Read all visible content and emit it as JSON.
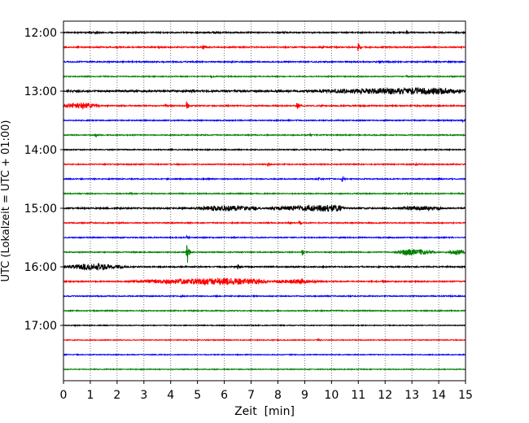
{
  "chart_data": {
    "type": "line",
    "title": "",
    "xlabel": "Zeit  [min]",
    "ylabel": "UTC (Lokalzeit = UTC + 01:00)",
    "x_range": [
      0,
      15
    ],
    "x_ticks": [
      "0",
      "1",
      "2",
      "3",
      "4",
      "5",
      "6",
      "7",
      "8",
      "9",
      "10",
      "11",
      "12",
      "13",
      "14",
      "15"
    ],
    "y_ticks": [
      "12:00",
      "13:00",
      "14:00",
      "15:00",
      "16:00",
      "17:00"
    ],
    "grid": "vertical dotted",
    "trace_interval_minutes": 15,
    "color_cycle": [
      "#000000",
      "#ff0000",
      "#0000ff",
      "#008000"
    ],
    "traces": [
      {
        "start": "12:00",
        "color": "#000000",
        "noise": 0.12,
        "events": [
          {
            "t": 1.1,
            "amp": 0.25
          },
          {
            "t": 5.6,
            "amp": 0.35
          },
          {
            "t": 8.2,
            "amp": 0.2
          },
          {
            "t": 12.8,
            "amp": 0.35
          }
        ]
      },
      {
        "start": "12:15",
        "color": "#ff0000",
        "noise": 0.12,
        "events": [
          {
            "t": 5.2,
            "amp": 0.9
          },
          {
            "t": 11.0,
            "amp": 1.0
          },
          {
            "t": 2.0,
            "amp": 0.2
          },
          {
            "t": 9.6,
            "amp": 0.2
          }
        ]
      },
      {
        "start": "12:30",
        "color": "#0000ff",
        "noise": 0.12,
        "events": [
          {
            "t": 6.3,
            "amp": 0.3
          },
          {
            "t": 11.8,
            "amp": 0.35
          },
          {
            "t": 1.0,
            "amp": 0.15
          }
        ]
      },
      {
        "start": "12:45",
        "color": "#008000",
        "noise": 0.1,
        "events": [
          {
            "t": 5.5,
            "amp": 0.2
          },
          {
            "t": 12.8,
            "amp": 0.2
          }
        ]
      },
      {
        "start": "13:00",
        "color": "#000000",
        "noise": 0.18,
        "events": [
          {
            "t": 4.8,
            "amp": 0.35
          }
        ],
        "bursts": [
          {
            "t0": 9.0,
            "t1": 15.0,
            "peak": 13.8,
            "amp": 0.5
          }
        ]
      },
      {
        "start": "13:15",
        "color": "#ff0000",
        "noise": 0.12,
        "events": [
          {
            "t": 4.6,
            "amp": 1.0
          },
          {
            "t": 8.7,
            "amp": 0.9
          },
          {
            "t": 3.8,
            "amp": 0.3
          }
        ],
        "bursts": [
          {
            "t0": 0.0,
            "t1": 1.4,
            "peak": 0.5,
            "amp": 0.55
          }
        ]
      },
      {
        "start": "13:30",
        "color": "#0000ff",
        "noise": 0.1,
        "events": [
          {
            "t": 14.9,
            "amp": 0.2
          }
        ]
      },
      {
        "start": "13:45",
        "color": "#008000",
        "noise": 0.1,
        "events": [
          {
            "t": 1.2,
            "amp": 0.35
          },
          {
            "t": 9.2,
            "amp": 0.15
          }
        ]
      },
      {
        "start": "14:00",
        "color": "#000000",
        "noise": 0.1,
        "events": [
          {
            "t": 4.0,
            "amp": 0.15
          },
          {
            "t": 10.3,
            "amp": 0.15
          }
        ]
      },
      {
        "start": "14:15",
        "color": "#ff0000",
        "noise": 0.1,
        "events": [
          {
            "t": 7.6,
            "amp": 0.45
          },
          {
            "t": 13.1,
            "amp": 0.4
          }
        ]
      },
      {
        "start": "14:30",
        "color": "#0000ff",
        "noise": 0.1,
        "events": [
          {
            "t": 9.5,
            "amp": 0.5
          },
          {
            "t": 10.4,
            "amp": 0.65
          },
          {
            "t": 14.0,
            "amp": 0.15
          }
        ]
      },
      {
        "start": "14:45",
        "color": "#008000",
        "noise": 0.1,
        "events": [
          {
            "t": 12.8,
            "amp": 0.2
          },
          {
            "t": 2.5,
            "amp": 0.15
          }
        ]
      },
      {
        "start": "15:00",
        "color": "#000000",
        "noise": 0.14,
        "events": [
          {
            "t": 14.0,
            "amp": 0.3
          }
        ],
        "bursts": [
          {
            "t0": 4.8,
            "t1": 7.5,
            "peak": 6.2,
            "amp": 0.45
          },
          {
            "t0": 7.5,
            "t1": 10.6,
            "peak": 10.1,
            "amp": 0.55
          },
          {
            "t0": 12.5,
            "t1": 14.2,
            "peak": 13.2,
            "amp": 0.3
          }
        ]
      },
      {
        "start": "15:15",
        "color": "#ff0000",
        "noise": 0.1,
        "events": [
          {
            "t": 8.8,
            "amp": 0.65
          },
          {
            "t": 8.4,
            "amp": 0.3
          },
          {
            "t": 1.0,
            "amp": 0.15
          }
        ]
      },
      {
        "start": "15:30",
        "color": "#0000ff",
        "noise": 0.1,
        "events": [
          {
            "t": 4.6,
            "amp": 0.3
          }
        ]
      },
      {
        "start": "15:45",
        "color": "#008000",
        "noise": 0.1,
        "events": [
          {
            "t": 4.6,
            "amp": 4.0
          },
          {
            "t": 8.9,
            "amp": 0.9
          },
          {
            "t": 12.8,
            "amp": 0.2
          }
        ],
        "bursts": [
          {
            "t0": 12.3,
            "t1": 14.0,
            "peak": 13.0,
            "amp": 0.5
          },
          {
            "t0": 14.2,
            "t1": 15.0,
            "peak": 14.8,
            "amp": 0.4
          }
        ]
      },
      {
        "start": "16:00",
        "color": "#000000",
        "noise": 0.12,
        "events": [
          {
            "t": 6.5,
            "amp": 0.5
          }
        ],
        "bursts": [
          {
            "t0": 0.0,
            "t1": 2.4,
            "peak": 1.1,
            "amp": 0.5
          }
        ]
      },
      {
        "start": "16:15",
        "color": "#ff0000",
        "noise": 0.12,
        "events": [
          {
            "t": 11.9,
            "amp": 0.35
          }
        ],
        "bursts": [
          {
            "t0": 2.3,
            "t1": 7.8,
            "peak": 6.3,
            "amp": 0.55
          },
          {
            "t0": 7.8,
            "t1": 9.6,
            "peak": 8.6,
            "amp": 0.35
          }
        ]
      },
      {
        "start": "16:30",
        "color": "#0000ff",
        "noise": 0.1,
        "events": [
          {
            "t": 4.4,
            "amp": 0.2
          }
        ]
      },
      {
        "start": "16:45",
        "color": "#008000",
        "noise": 0.1,
        "events": [
          {
            "t": 0.3,
            "amp": 0.15
          },
          {
            "t": 14.0,
            "amp": 0.15
          }
        ]
      },
      {
        "start": "17:00",
        "color": "#000000",
        "noise": 0.08,
        "events": [
          {
            "t": 0.4,
            "amp": 0.15
          }
        ]
      },
      {
        "start": "17:15",
        "color": "#ff0000",
        "noise": 0.08,
        "events": [
          {
            "t": 9.5,
            "amp": 0.3
          }
        ]
      },
      {
        "start": "17:30",
        "color": "#0000ff",
        "noise": 0.08,
        "events": []
      },
      {
        "start": "17:45",
        "color": "#008000",
        "noise": 0.08,
        "events": []
      }
    ]
  }
}
